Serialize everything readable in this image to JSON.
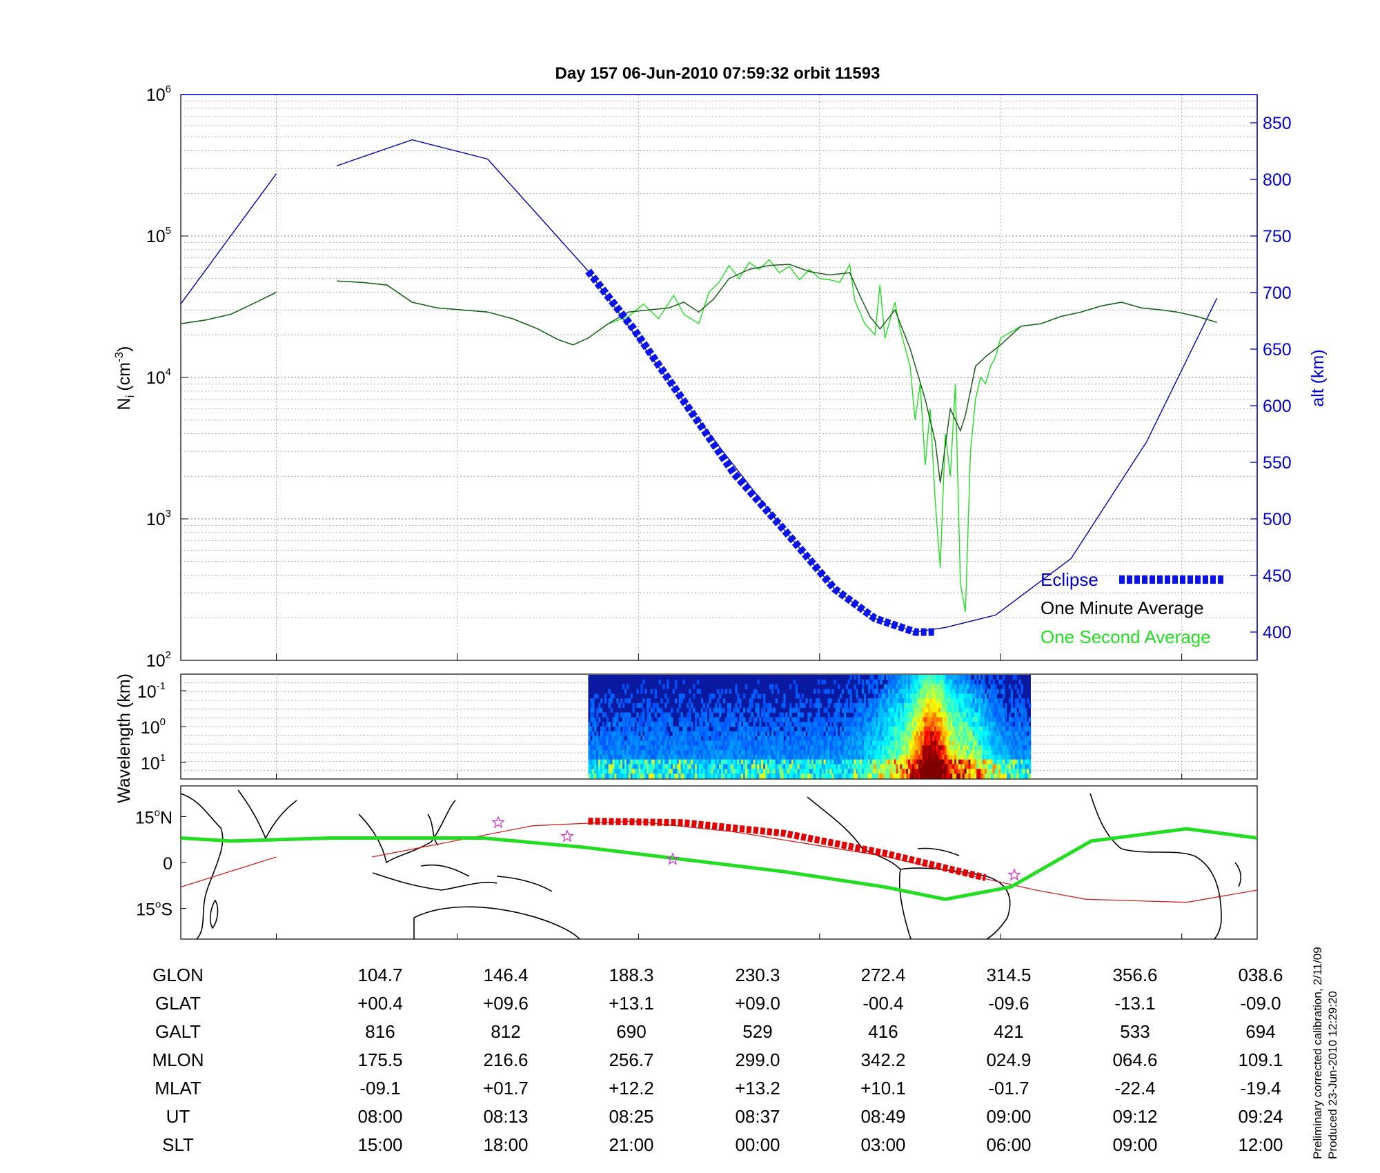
{
  "title": "Day 157  06-Jun-2010 07:59:32   orbit 11593",
  "footer": {
    "line1": "Preliminary corrected calibration, 2/11/09",
    "line2": "Produced 23-Jun-2010 12:29:20"
  },
  "colors": {
    "ion_density_minute": "#1a5c1a",
    "ion_density_second": "#22dd22",
    "altitude": "#0000aa",
    "eclipse": "#0a14e6",
    "ground_track": "#22dd22",
    "magnetic_equator": "#cc2222",
    "eclipse_track": "#e00000",
    "stars": "#cc33cc",
    "coastline": "#000000"
  },
  "chart_data": [
    {
      "type": "line",
      "panel": "ion-density",
      "title": "Day 157  06-Jun-2010 07:59:32   orbit 11593",
      "ylabel_main": "N",
      "ylabel_sub": "i",
      "ylabel_units": "(cm",
      "ylabel_exp": "-3",
      "ylabel_close": ")",
      "yscale": "log",
      "ylim": [
        100,
        1000000
      ],
      "y_ticks": [
        {
          "base": "10",
          "exp": "2",
          "value": 100
        },
        {
          "base": "10",
          "exp": "3",
          "value": 1000
        },
        {
          "base": "10",
          "exp": "4",
          "value": 10000
        },
        {
          "base": "10",
          "exp": "5",
          "value": 100000
        },
        {
          "base": "10",
          "exp": "6",
          "value": 1000000
        }
      ],
      "y2label": "alt (km)",
      "y2lim": [
        375,
        875
      ],
      "y2_ticks": [
        "400",
        "450",
        "500",
        "550",
        "600",
        "650",
        "700",
        "750",
        "800",
        "850"
      ],
      "xlim": [
        "07:59:32",
        "09:24"
      ],
      "grid": true,
      "legend_position": "bottom-right",
      "series": [
        {
          "name": "One Minute Average",
          "points": [
            [
              0,
              24000
            ],
            [
              5,
              25500
            ],
            [
              10,
              28000
            ],
            [
              15,
              34000
            ],
            [
              19,
              40000
            ],
            [
              31,
              48000
            ],
            [
              36,
              47000
            ],
            [
              41,
              45000
            ],
            [
              46,
              34000
            ],
            [
              51,
              31000
            ],
            [
              56,
              30000
            ],
            [
              61,
              29000
            ],
            [
              66,
              26000
            ],
            [
              71,
              22000
            ],
            [
              75,
              18500
            ],
            [
              78,
              17000
            ],
            [
              81,
              19000
            ],
            [
              85,
              24000
            ],
            [
              89,
              29000
            ],
            [
              93,
              30000
            ],
            [
              97,
              31000
            ],
            [
              100,
              34000
            ],
            [
              103,
              29000
            ],
            [
              106,
              36000
            ],
            [
              109,
              50000
            ],
            [
              113,
              58000
            ],
            [
              117,
              62000
            ],
            [
              121,
              63000
            ],
            [
              125,
              56000
            ],
            [
              129,
              53000
            ],
            [
              133,
              55000
            ],
            [
              135,
              38000
            ],
            [
              137,
              27000
            ],
            [
              139,
              22000
            ],
            [
              142,
              30000
            ],
            [
              145,
              16000
            ],
            [
              148,
              7000
            ],
            [
              150,
              3500
            ],
            [
              151,
              1800
            ],
            [
              153,
              6000
            ],
            [
              155,
              4200
            ],
            [
              156,
              5400
            ],
            [
              158,
              12000
            ],
            [
              160,
              14000
            ],
            [
              163,
              17000
            ],
            [
              167,
              23000
            ],
            [
              171,
              24000
            ],
            [
              175,
              27000
            ],
            [
              179,
              29000
            ],
            [
              183,
              32000
            ],
            [
              187,
              34000
            ],
            [
              191,
              31000
            ],
            [
              195,
              30000
            ],
            [
              198,
              29000
            ],
            [
              202,
              27000
            ],
            [
              206,
              24500
            ]
          ]
        },
        {
          "name": "One Second Average",
          "points": [
            [
              0,
              24000
            ],
            [
              5,
              25500
            ],
            [
              10,
              28000
            ],
            [
              15,
              34000
            ],
            [
              19,
              40000
            ],
            [
              31,
              48000
            ],
            [
              36,
              47000
            ],
            [
              41,
              45000
            ],
            [
              46,
              34000
            ],
            [
              51,
              31000
            ],
            [
              56,
              30000
            ],
            [
              61,
              29000
            ],
            [
              66,
              26000
            ],
            [
              71,
              22000
            ],
            [
              75,
              18500
            ],
            [
              78,
              17000
            ],
            [
              81,
              19000
            ],
            [
              85,
              24000
            ],
            [
              89,
              27000
            ],
            [
              92,
              33000
            ],
            [
              95,
              26000
            ],
            [
              98,
              38000
            ],
            [
              100,
              28000
            ],
            [
              103,
              24000
            ],
            [
              105,
              40000
            ],
            [
              107,
              47000
            ],
            [
              109,
              62000
            ],
            [
              111,
              50000
            ],
            [
              113,
              65000
            ],
            [
              115,
              58000
            ],
            [
              117,
              68000
            ],
            [
              119,
              55000
            ],
            [
              121,
              61000
            ],
            [
              123,
              49000
            ],
            [
              125,
              58000
            ],
            [
              127,
              50000
            ],
            [
              129,
              49000
            ],
            [
              131,
              47000
            ],
            [
              133,
              63000
            ],
            [
              134,
              35000
            ],
            [
              136,
              24000
            ],
            [
              138,
              20000
            ],
            [
              139,
              45000
            ],
            [
              140,
              19000
            ],
            [
              142,
              34000
            ],
            [
              143,
              22000
            ],
            [
              145,
              12000
            ],
            [
              146,
              5000
            ],
            [
              147,
              9000
            ],
            [
              148,
              2400
            ],
            [
              149,
              6000
            ],
            [
              150,
              1300
            ],
            [
              151,
              450
            ],
            [
              152,
              4000
            ],
            [
              153,
              2000
            ],
            [
              154,
              9000
            ],
            [
              155,
              350
            ],
            [
              156,
              220
            ],
            [
              157,
              3000
            ],
            [
              158,
              7000
            ],
            [
              159,
              10000
            ],
            [
              160,
              9000
            ],
            [
              161,
              12000
            ],
            [
              162,
              14000
            ],
            [
              163,
              19000
            ],
            [
              167,
              23000
            ],
            [
              171,
              24000
            ],
            [
              175,
              27000
            ],
            [
              179,
              29000
            ],
            [
              183,
              32000
            ],
            [
              187,
              34000
            ],
            [
              191,
              31000
            ],
            [
              195,
              30000
            ],
            [
              198,
              29000
            ],
            [
              202,
              27000
            ],
            [
              206,
              24500
            ]
          ]
        }
      ]
    },
    {
      "type": "line",
      "panel": "altitude",
      "series": [
        {
          "name": "",
          "points": [
            [
              0,
              690
            ],
            [
              19,
              805
            ],
            [
              31,
              812
            ],
            [
              46,
              835
            ],
            [
              61,
              818
            ],
            [
              81,
              719
            ],
            [
              100,
              604
            ],
            [
              120,
              490
            ],
            [
              130,
              438
            ],
            [
              138,
              412
            ],
            [
              146,
              400
            ],
            [
              152,
              404
            ],
            [
              162,
              415
            ],
            [
              177,
              465
            ],
            [
              192,
              568
            ],
            [
              206,
              695
            ]
          ]
        },
        {
          "name": "Eclipse",
          "points": [
            [
              81,
              719
            ],
            [
              90,
              668
            ],
            [
              100,
              604
            ],
            [
              110,
              540
            ],
            [
              120,
              490
            ],
            [
              130,
              438
            ],
            [
              138,
              412
            ],
            [
              146,
              400
            ],
            [
              150,
              400
            ]
          ]
        }
      ]
    },
    {
      "type": "heatmap",
      "panel": "spectrogram",
      "ylabel": "Wavelength (km)",
      "y_ticks": [
        {
          "base": "10",
          "exp": "-1"
        },
        {
          "base": "10",
          "exp": "0"
        },
        {
          "base": "10",
          "exp": "1"
        }
      ],
      "data_extent_x": [
        81,
        169
      ],
      "colormap": "jet",
      "enhancement_peak_x": 149
    },
    {
      "type": "line",
      "panel": "map",
      "y_ticks": [
        {
          "value": "15",
          "unit": "N"
        },
        {
          "value": "0",
          "unit": ""
        },
        {
          "value": "15",
          "unit": "S"
        }
      ],
      "ylim": [
        -25,
        25
      ],
      "ground_track_label": "",
      "series": [
        {
          "name": "",
          "points": [
            [
              0,
              8
            ],
            [
              10,
              7
            ],
            [
              30,
              8
            ],
            [
              60,
              8
            ],
            [
              80,
              5
            ],
            [
              100,
              1
            ],
            [
              120,
              -3
            ],
            [
              140,
              -8
            ],
            [
              152,
              -12
            ],
            [
              165,
              -8
            ],
            [
              181,
              7
            ],
            [
              200,
              11
            ],
            [
              214,
              8
            ]
          ]
        },
        {
          "name": "",
          "points": [
            [
              0,
              -8
            ],
            [
              19,
              1.8
            ],
            [
              38,
              1.8
            ],
            [
              70,
              12
            ],
            [
              90,
              13.5
            ],
            [
              110,
              10
            ],
            [
              140,
              2
            ],
            [
              170,
              -9
            ],
            [
              180,
              -12
            ],
            [
              200,
              -13
            ],
            [
              214,
              -9
            ]
          ]
        },
        {
          "name": "Eclipse",
          "points": [
            [
              81,
              13.5
            ],
            [
              100,
              13
            ],
            [
              120,
              9.5
            ],
            [
              140,
              3
            ],
            [
              160,
              -5
            ]
          ]
        }
      ]
    }
  ],
  "table": {
    "row_labels": [
      "GLON",
      "GLAT",
      "GALT",
      "MLON",
      "MLAT",
      "UT",
      "SLT"
    ],
    "columns": [
      [
        "104.7",
        "+00.4",
        "816",
        "175.5",
        "-09.1",
        "08:00",
        "15:00"
      ],
      [
        "146.4",
        "+09.6",
        "812",
        "216.6",
        "+01.7",
        "08:13",
        "18:00"
      ],
      [
        "188.3",
        "+13.1",
        "690",
        "256.7",
        "+12.2",
        "08:25",
        "21:00"
      ],
      [
        "230.3",
        "+09.0",
        "529",
        "299.0",
        "+13.2",
        "08:37",
        "00:00"
      ],
      [
        "272.4",
        "-00.4",
        "416",
        "342.2",
        "+10.1",
        "08:49",
        "03:00"
      ],
      [
        "314.5",
        "-09.6",
        "421",
        "024.9",
        "-01.7",
        "09:00",
        "06:00"
      ],
      [
        "356.6",
        "-13.1",
        "533",
        "064.6",
        "-22.4",
        "09:12",
        "09:00"
      ],
      [
        "038.6",
        "-09.0",
        "694",
        "109.1",
        "-19.4",
        "09:24",
        "12:00"
      ]
    ]
  }
}
